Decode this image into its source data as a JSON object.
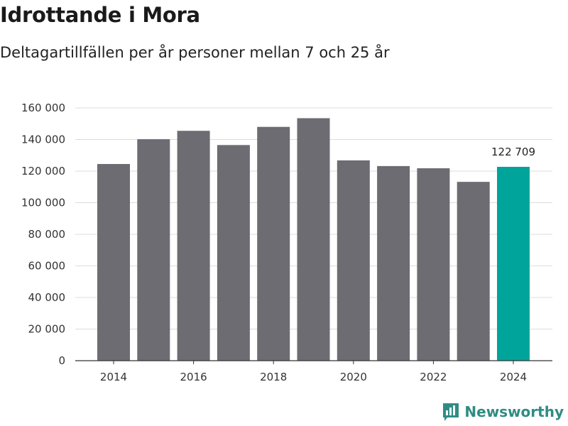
{
  "chart_data": {
    "type": "bar",
    "title": "Idrottande i Mora",
    "subtitle": "Deltagartillfällen per år personer mellan 7 och 25 år",
    "categories": [
      2014,
      2015,
      2016,
      2017,
      2018,
      2019,
      2020,
      2021,
      2022,
      2023,
      2024
    ],
    "values": [
      124500,
      140200,
      145500,
      136500,
      148000,
      153500,
      126800,
      123200,
      121800,
      113200,
      122709
    ],
    "highlight_index": 10,
    "highlight_label": "122 709",
    "x_ticks": [
      "2014",
      "2016",
      "2018",
      "2020",
      "2022",
      "2024"
    ],
    "y_ticks": [
      {
        "value": 0,
        "label": "0"
      },
      {
        "value": 20000,
        "label": "20 000"
      },
      {
        "value": 40000,
        "label": "40 000"
      },
      {
        "value": 60000,
        "label": "60 000"
      },
      {
        "value": 80000,
        "label": "80 000"
      },
      {
        "value": 100000,
        "label": "100 000"
      },
      {
        "value": 120000,
        "label": "120 000"
      },
      {
        "value": 140000,
        "label": "140 000"
      },
      {
        "value": 160000,
        "label": "160 000"
      }
    ],
    "ylim": [
      0,
      160000
    ],
    "grid": true,
    "colors": {
      "bar": "#6d6c72",
      "highlight": "#00a49a",
      "grid": "#dcdcdc",
      "axis": "#333333"
    }
  },
  "brand": {
    "name": "Newsworthy",
    "icon": "newsworthy-logo-icon",
    "color": "#2f8c84"
  }
}
